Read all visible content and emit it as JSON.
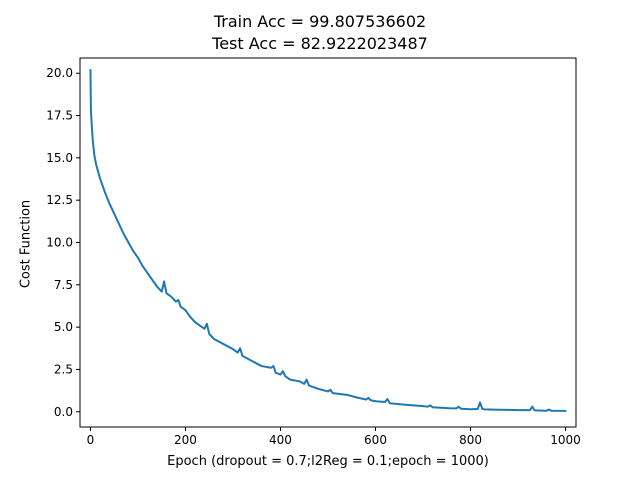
{
  "chart_data": {
    "type": "line",
    "title_lines": [
      "Train Acc = 99.807536602",
      "Test Acc = 82.9222023487"
    ],
    "xlabel": "Epoch (dropout = 0.7;l2Reg = 0.1;epoch = 1000)",
    "ylabel": "Cost Function",
    "xlim": [
      -22,
      1022
    ],
    "ylim": [
      -0.9,
      20.9
    ],
    "xticks": [
      0,
      200,
      400,
      600,
      800,
      1000
    ],
    "xtick_labels": [
      "0",
      "200",
      "400",
      "600",
      "800",
      "1000"
    ],
    "yticks": [
      0,
      2.5,
      5,
      7.5,
      10,
      12.5,
      15,
      17.5,
      20
    ],
    "ytick_labels": [
      "0.0",
      "2.5",
      "5.0",
      "7.5",
      "10.0",
      "12.5",
      "15.0",
      "17.5",
      "20.0"
    ],
    "grid": false,
    "series": [
      {
        "color": "#1f77b4",
        "x": [
          0,
          1,
          3,
          5,
          8,
          12,
          20,
          30,
          40,
          50,
          60,
          70,
          80,
          90,
          100,
          110,
          120,
          130,
          140,
          150,
          155,
          160,
          170,
          180,
          185,
          190,
          200,
          210,
          220,
          230,
          240,
          245,
          250,
          260,
          280,
          300,
          310,
          315,
          320,
          340,
          360,
          380,
          385,
          390,
          400,
          405,
          410,
          420,
          440,
          450,
          455,
          460,
          480,
          500,
          505,
          510,
          540,
          560,
          580,
          585,
          590,
          600,
          620,
          625,
          630,
          660,
          700,
          710,
          715,
          720,
          760,
          770,
          775,
          780,
          800,
          815,
          820,
          825,
          830,
          860,
          900,
          925,
          930,
          935,
          960,
          965,
          970,
          1000
        ],
        "y": [
          20.2,
          17.8,
          16.8,
          16.0,
          15.2,
          14.6,
          13.8,
          13.0,
          12.3,
          11.7,
          11.1,
          10.5,
          10.0,
          9.5,
          9.1,
          8.6,
          8.2,
          7.8,
          7.4,
          7.1,
          7.7,
          7.0,
          6.8,
          6.5,
          6.6,
          6.2,
          6.0,
          5.6,
          5.3,
          5.1,
          4.9,
          5.2,
          4.6,
          4.3,
          4.0,
          3.7,
          3.5,
          3.75,
          3.3,
          3.0,
          2.7,
          2.6,
          2.7,
          2.3,
          2.2,
          2.4,
          2.1,
          1.9,
          1.8,
          1.65,
          1.9,
          1.55,
          1.35,
          1.2,
          1.3,
          1.1,
          1.0,
          0.85,
          0.72,
          0.82,
          0.68,
          0.62,
          0.58,
          0.75,
          0.5,
          0.42,
          0.33,
          0.3,
          0.38,
          0.27,
          0.2,
          0.2,
          0.3,
          0.18,
          0.15,
          0.16,
          0.55,
          0.16,
          0.14,
          0.12,
          0.1,
          0.1,
          0.3,
          0.08,
          0.06,
          0.13,
          0.06,
          0.05
        ]
      }
    ]
  }
}
